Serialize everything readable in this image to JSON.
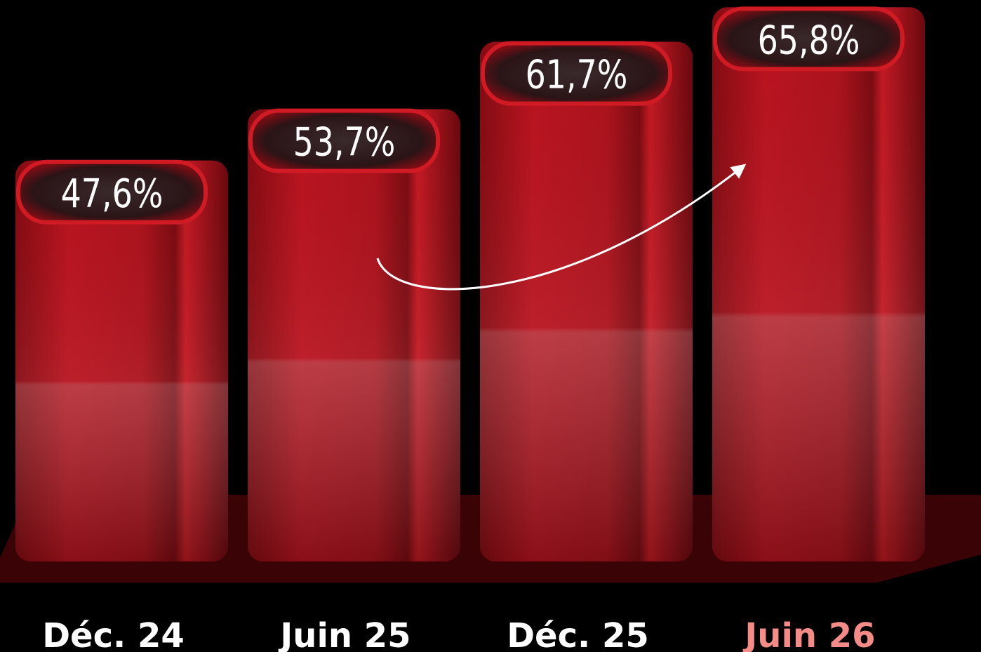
{
  "chart_data": {
    "type": "bar",
    "categories": [
      "Déc. 24",
      "Juin 25",
      "Déc. 25",
      "Juin 26"
    ],
    "values": [
      47.6,
      53.7,
      61.7,
      65.8
    ],
    "value_labels": [
      "47,6%",
      "53,7%",
      "61,7%",
      "65,8%"
    ],
    "color": "#c0141e"
  }
}
